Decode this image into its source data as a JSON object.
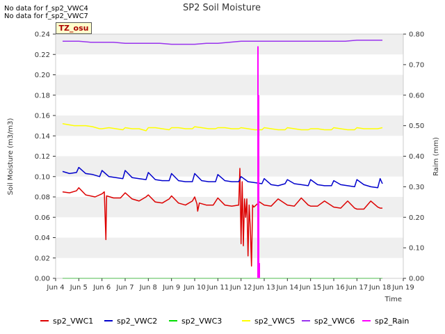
{
  "notes": [
    "No data for f_sp2_VWC4",
    "No data for f_sp2_VWC7"
  ],
  "badge": "TZ_osu",
  "colors": {
    "sp2_VWC1": "#dd0000",
    "sp2_VWC2": "#0000cc",
    "sp2_VWC3": "#00dd00",
    "sp2_VWC5": "#ffff00",
    "sp2_VWC6": "#9933ee",
    "sp2_Rain": "#ff00ff",
    "band": "#efefef"
  },
  "chart_data": {
    "type": "line",
    "title": "SP2 Soil Moisture",
    "xlabel": "Time",
    "ylabel": "Soil Moisture (m3/m3)",
    "y2label": "Raim (mm)",
    "xlim": [
      4,
      19
    ],
    "ylim": [
      0,
      0.24
    ],
    "y2lim": [
      0,
      0.8
    ],
    "grid": "alternating horizontal bands",
    "legend_position": "bottom",
    "xticks": [
      {
        "v": 4,
        "label": "Jun 4"
      },
      {
        "v": 5,
        "label": "Jun 5"
      },
      {
        "v": 6,
        "label": "Jun 6"
      },
      {
        "v": 7,
        "label": "Jun 7"
      },
      {
        "v": 8,
        "label": "Jun 8"
      },
      {
        "v": 9,
        "label": "Jun 9"
      },
      {
        "v": 10,
        "label": "Jun 10"
      },
      {
        "v": 11,
        "label": "Jun 11"
      },
      {
        "v": 12,
        "label": "Jun 12"
      },
      {
        "v": 13,
        "label": "Jun 13"
      },
      {
        "v": 14,
        "label": "Jun 14"
      },
      {
        "v": 15,
        "label": "Jun 15"
      },
      {
        "v": 16,
        "label": "Jun 16"
      },
      {
        "v": 17,
        "label": "Jun 17"
      },
      {
        "v": 18,
        "label": "Jun 18"
      },
      {
        "v": 19,
        "label": "Jun 19"
      }
    ],
    "yticks": [
      "0.00",
      "0.02",
      "0.04",
      "0.06",
      "0.08",
      "0.10",
      "0.12",
      "0.14",
      "0.16",
      "0.18",
      "0.20",
      "0.22",
      "0.24"
    ],
    "y2ticks": [
      "0.00",
      "0.10",
      "0.20",
      "0.30",
      "0.40",
      "0.50",
      "0.60",
      "0.70",
      "0.80"
    ],
    "series": [
      {
        "name": "sp2_VWC1",
        "axis": "left",
        "x": [
          4.3,
          4.6,
          4.9,
          5.0,
          5.3,
          5.7,
          6.0,
          6.1,
          6.17,
          6.2,
          6.5,
          6.8,
          7.0,
          7.3,
          7.6,
          7.9,
          8.0,
          8.3,
          8.6,
          8.9,
          9.0,
          9.3,
          9.6,
          9.9,
          10.0,
          10.1,
          10.13,
          10.2,
          10.5,
          10.8,
          11.0,
          11.3,
          11.6,
          11.9,
          11.95,
          12.0,
          12.05,
          12.1,
          12.15,
          12.2,
          12.25,
          12.3,
          12.35,
          12.4,
          12.45,
          12.5,
          12.55,
          12.6,
          12.65,
          12.7,
          12.8,
          13.0,
          13.3,
          13.6,
          14.0,
          14.3,
          14.6,
          14.9,
          15.0,
          15.3,
          15.6,
          16.0,
          16.3,
          16.6,
          16.9,
          17.0,
          17.3,
          17.6,
          17.9,
          18.0,
          18.1
        ],
        "y": [
          0.085,
          0.084,
          0.086,
          0.089,
          0.082,
          0.08,
          0.083,
          0.085,
          0.038,
          0.081,
          0.079,
          0.079,
          0.084,
          0.078,
          0.076,
          0.08,
          0.082,
          0.075,
          0.074,
          0.078,
          0.081,
          0.074,
          0.072,
          0.076,
          0.08,
          0.073,
          0.066,
          0.074,
          0.072,
          0.072,
          0.079,
          0.072,
          0.071,
          0.072,
          0.108,
          0.034,
          0.095,
          0.032,
          0.078,
          0.06,
          0.078,
          0.022,
          0.072,
          0.05,
          0.012,
          0.072,
          0.07,
          0.071,
          0.072,
          0.073,
          0.075,
          0.072,
          0.071,
          0.078,
          0.072,
          0.071,
          0.079,
          0.072,
          0.071,
          0.071,
          0.076,
          0.07,
          0.069,
          0.076,
          0.069,
          0.068,
          0.068,
          0.076,
          0.07,
          0.069,
          0.069
        ]
      },
      {
        "name": "sp2_VWC2",
        "axis": "left",
        "x": [
          4.3,
          4.6,
          4.9,
          5.0,
          5.3,
          5.6,
          5.9,
          6.0,
          6.3,
          6.6,
          6.9,
          7.0,
          7.3,
          7.6,
          7.9,
          8.0,
          8.3,
          8.6,
          8.9,
          9.0,
          9.3,
          9.6,
          9.9,
          10.0,
          10.3,
          10.6,
          10.9,
          11.0,
          11.3,
          11.6,
          11.9,
          12.0,
          12.3,
          12.6,
          12.9,
          13.0,
          13.3,
          13.6,
          13.9,
          14.0,
          14.3,
          14.6,
          14.9,
          15.0,
          15.3,
          15.6,
          15.9,
          16.0,
          16.3,
          16.6,
          16.9,
          17.0,
          17.3,
          17.6,
          17.9,
          18.0,
          18.1
        ],
        "y": [
          0.105,
          0.103,
          0.104,
          0.109,
          0.103,
          0.102,
          0.1,
          0.106,
          0.1,
          0.099,
          0.098,
          0.106,
          0.099,
          0.098,
          0.097,
          0.104,
          0.097,
          0.096,
          0.096,
          0.103,
          0.096,
          0.095,
          0.095,
          0.103,
          0.096,
          0.095,
          0.095,
          0.102,
          0.096,
          0.095,
          0.095,
          0.1,
          0.095,
          0.094,
          0.093,
          0.098,
          0.092,
          0.091,
          0.093,
          0.097,
          0.093,
          0.092,
          0.091,
          0.097,
          0.092,
          0.091,
          0.091,
          0.096,
          0.092,
          0.091,
          0.09,
          0.097,
          0.092,
          0.09,
          0.089,
          0.098,
          0.093
        ]
      },
      {
        "name": "sp2_VWC3",
        "axis": "left",
        "x": [
          4.3,
          18.1
        ],
        "y": [
          0.0,
          0.0
        ]
      },
      {
        "name": "sp2_VWC5",
        "axis": "left",
        "x": [
          4.3,
          4.8,
          5.3,
          5.6,
          5.9,
          6.0,
          6.3,
          6.6,
          6.9,
          7.0,
          7.3,
          7.6,
          7.9,
          8.0,
          8.3,
          8.6,
          8.9,
          9.0,
          9.3,
          9.6,
          9.9,
          10.0,
          10.3,
          10.6,
          10.9,
          11.0,
          11.3,
          11.6,
          11.9,
          12.0,
          12.3,
          12.6,
          12.9,
          13.0,
          13.3,
          13.6,
          13.9,
          14.0,
          14.3,
          14.6,
          14.9,
          15.0,
          15.3,
          15.6,
          15.9,
          16.0,
          16.3,
          16.6,
          16.9,
          17.0,
          17.3,
          17.6,
          17.9,
          18.1
        ],
        "y": [
          0.152,
          0.15,
          0.15,
          0.149,
          0.147,
          0.147,
          0.148,
          0.147,
          0.146,
          0.148,
          0.147,
          0.147,
          0.145,
          0.148,
          0.148,
          0.147,
          0.146,
          0.148,
          0.148,
          0.147,
          0.147,
          0.149,
          0.148,
          0.147,
          0.147,
          0.148,
          0.148,
          0.147,
          0.147,
          0.148,
          0.147,
          0.146,
          0.146,
          0.148,
          0.147,
          0.146,
          0.146,
          0.148,
          0.147,
          0.146,
          0.146,
          0.147,
          0.147,
          0.146,
          0.146,
          0.148,
          0.147,
          0.146,
          0.146,
          0.148,
          0.147,
          0.147,
          0.147,
          0.148
        ]
      },
      {
        "name": "sp2_VWC6",
        "axis": "left",
        "x": [
          4.3,
          5.0,
          5.5,
          6.0,
          6.5,
          7.0,
          7.5,
          8.0,
          8.5,
          9.0,
          9.5,
          10.0,
          10.5,
          11.0,
          11.5,
          12.0,
          12.5,
          13.0,
          13.5,
          14.0,
          14.5,
          15.0,
          15.5,
          16.0,
          16.5,
          17.0,
          17.5,
          18.1
        ],
        "y": [
          0.233,
          0.233,
          0.232,
          0.232,
          0.232,
          0.231,
          0.231,
          0.231,
          0.231,
          0.23,
          0.23,
          0.23,
          0.231,
          0.231,
          0.232,
          0.233,
          0.233,
          0.233,
          0.233,
          0.233,
          0.233,
          0.233,
          0.233,
          0.233,
          0.233,
          0.234,
          0.234,
          0.234
        ]
      },
      {
        "name": "sp2_Rain",
        "axis": "right",
        "style": "bars",
        "x": [
          12.73,
          12.76,
          12.79
        ],
        "y": [
          0.76,
          0.6,
          0.05
        ]
      }
    ]
  }
}
